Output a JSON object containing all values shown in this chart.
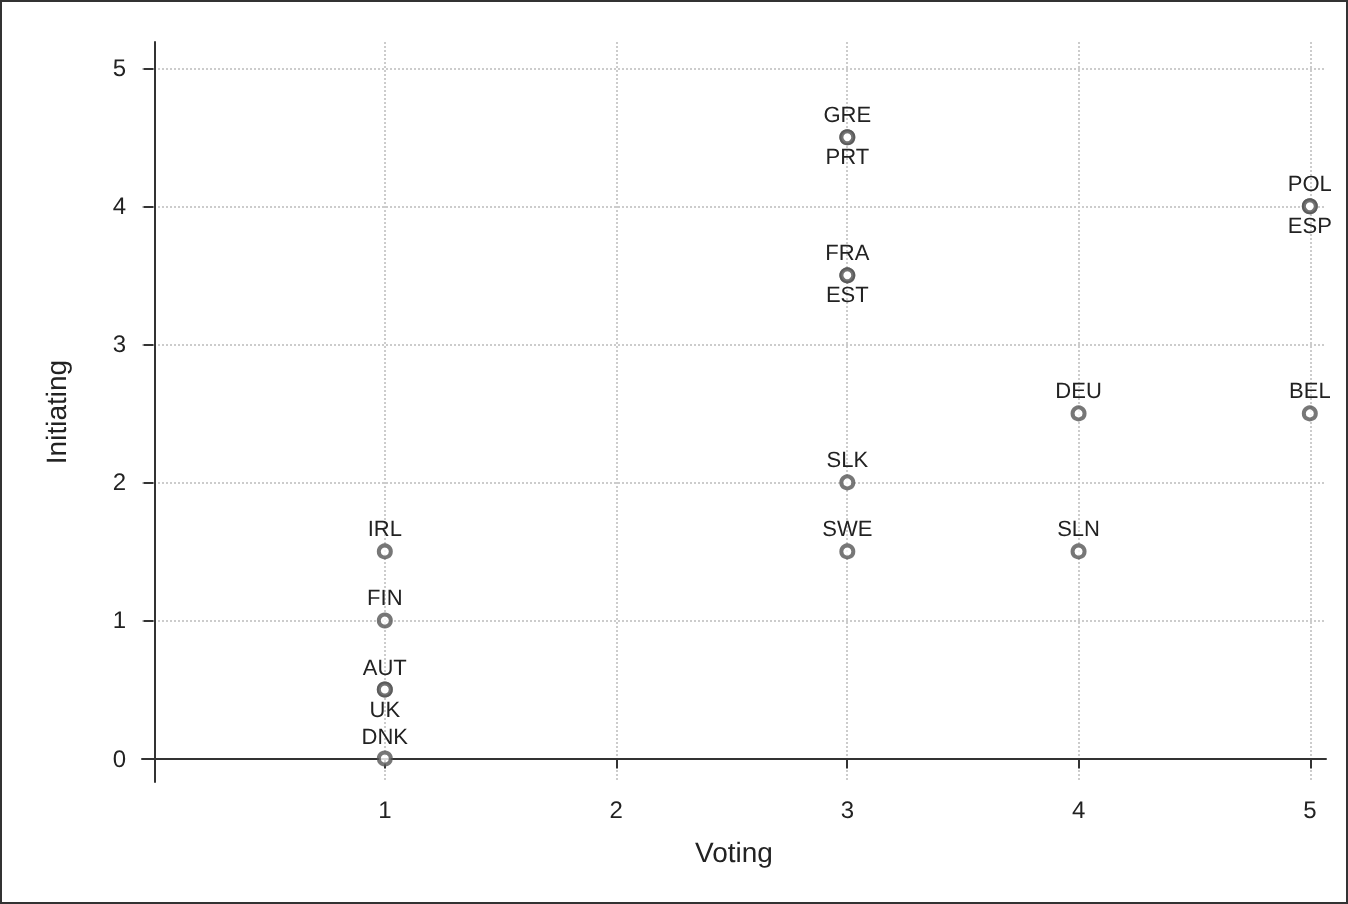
{
  "chart_data": {
    "type": "scatter",
    "xlabel": "Voting",
    "ylabel": "Initiating",
    "x": [
      1,
      1,
      1,
      1,
      1,
      3,
      3,
      3,
      3,
      3,
      3,
      4,
      4,
      5,
      5,
      5
    ],
    "series": [
      {
        "color": "#555555",
        "values": [
          1.5,
          1,
          0.5,
          0.5,
          0,
          4.5,
          4.5,
          3.5,
          3.5,
          2,
          1.5,
          2.5,
          1.5,
          4,
          4,
          2.5
        ]
      }
    ],
    "annotations": [
      {
        "text": "IRL",
        "x": 1,
        "y": 1.5
      },
      {
        "text": "FIN",
        "x": 1,
        "y": 1
      },
      {
        "text": "AUT",
        "x": 1,
        "y": 0.5
      },
      {
        "text": "UK",
        "x": 1,
        "y": 0.5
      },
      {
        "text": "DNK",
        "x": 1,
        "y": 0
      },
      {
        "text": "GRE",
        "x": 3,
        "y": 4.5
      },
      {
        "text": "PRT",
        "x": 3,
        "y": 4.5
      },
      {
        "text": "FRA",
        "x": 3,
        "y": 3.5
      },
      {
        "text": "EST",
        "x": 3,
        "y": 3.5
      },
      {
        "text": "SLK",
        "x": 3,
        "y": 2
      },
      {
        "text": "SWE",
        "x": 3,
        "y": 1.5
      },
      {
        "text": "DEU",
        "x": 4,
        "y": 2.5
      },
      {
        "text": "SLN",
        "x": 4,
        "y": 1.5
      },
      {
        "text": "POL",
        "x": 5,
        "y": 4
      },
      {
        "text": "ESP",
        "x": 5,
        "y": 4
      },
      {
        "text": "BEL",
        "x": 5,
        "y": 2.5
      }
    ],
    "xlim": [
      -0.05,
      5.07
    ],
    "ylim": [
      -0.17,
      5.19
    ],
    "xticks": [
      1,
      2,
      3,
      4,
      5
    ],
    "yticks": [
      0,
      1,
      2,
      3,
      4,
      5
    ],
    "grid": true,
    "marker": "circle"
  }
}
